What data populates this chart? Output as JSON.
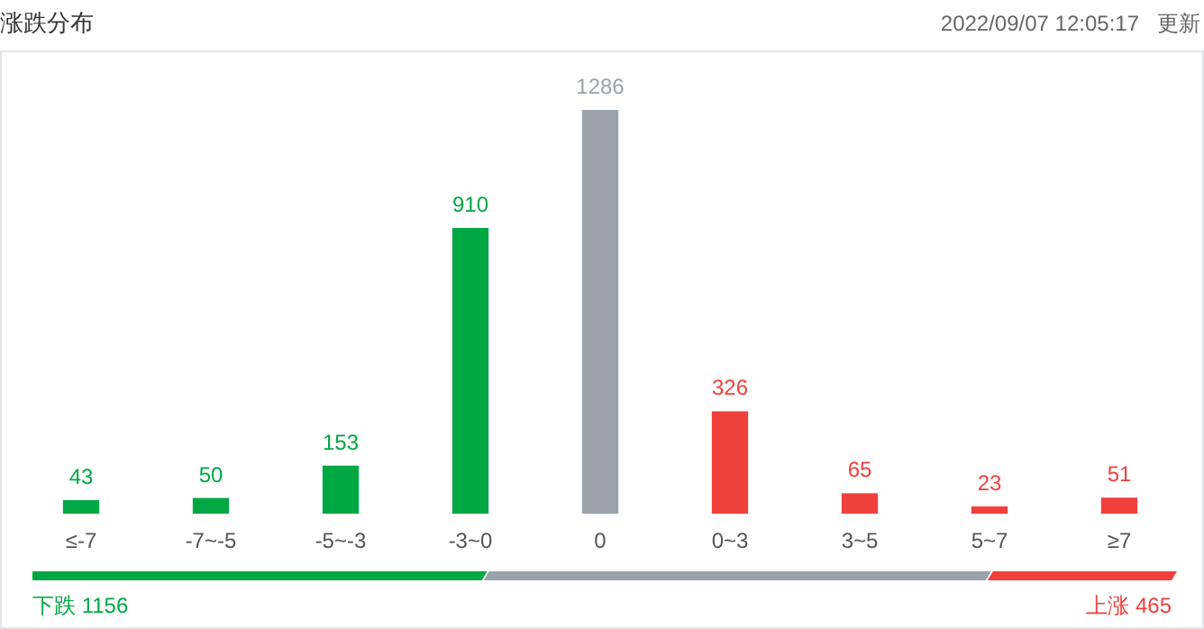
{
  "chart_data": {
    "type": "bar",
    "title": "涨跌分布",
    "subtitle": "2022/09/07 12:05:17",
    "categories": [
      "≤-7",
      "-7~-5",
      "-5~-3",
      "-3~0",
      "0",
      "0~3",
      "3~5",
      "5~7",
      "≥7"
    ],
    "values": [
      43,
      50,
      153,
      910,
      1286,
      326,
      65,
      23,
      51
    ],
    "colors": [
      "#00a843",
      "#00a843",
      "#00a843",
      "#00a843",
      "#9aa3ab",
      "#f0403c",
      "#f0403c",
      "#f0403c",
      "#f0403c"
    ],
    "data_labels": true,
    "annotations": [
      "更新",
      "下跌 1156",
      "上涨 465"
    ]
  }
}
